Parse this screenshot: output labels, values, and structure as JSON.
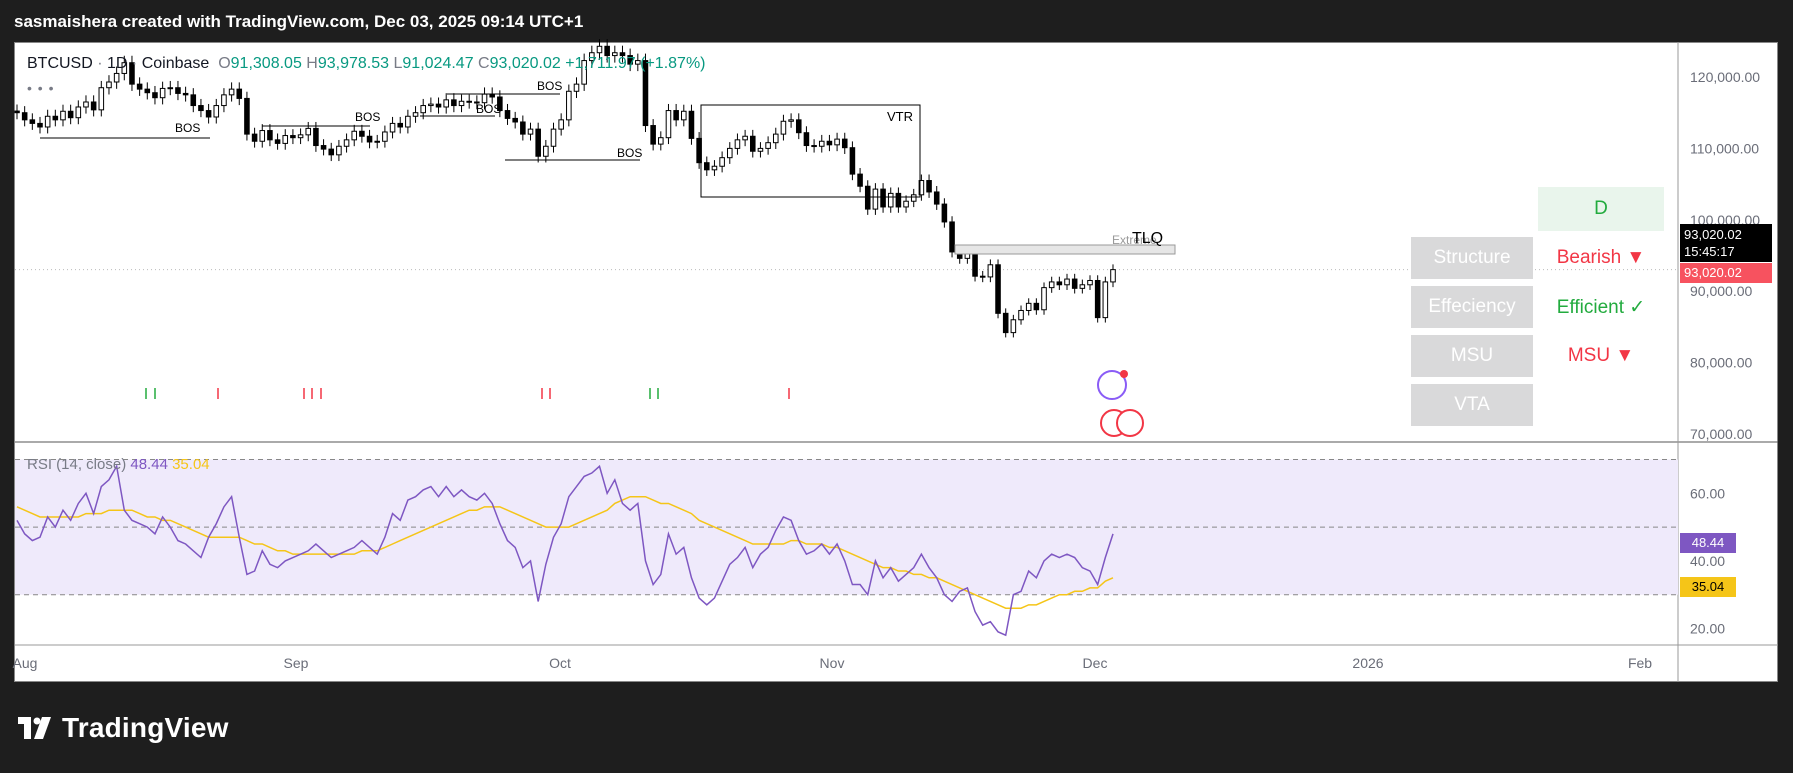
{
  "header": {
    "attribution": "sasmaishera created with TradingView.com, Dec 03, 2025 09:14 UTC+1"
  },
  "legend": {
    "symbol": "BTCUSD",
    "sep": "·",
    "interval": "1D",
    "exchange": "Coinbase",
    "o_label": "O",
    "o_value": "91,308.05",
    "h_label": "H",
    "h_value": "93,978.53",
    "l_label": "L",
    "l_value": "91,024.47",
    "c_label": "C",
    "c_value": "93,020.02",
    "change": "+1,711.97 (+1.87%)",
    "more": "• • •"
  },
  "rsi": {
    "name": "RSI (14, close)",
    "value": "48.44",
    "ma_value": "35.04"
  },
  "colors": {
    "up": "#ffffff",
    "down": "#000000",
    "rsi_line": "#7e57c2",
    "rsi_ma": "#f5c518",
    "bearish": "#f23645",
    "efficient": "#22ab3e",
    "last_price": "#f7525f",
    "rsi_badge": "#7e57c2",
    "ma_badge": "#f5c518"
  },
  "panel": {
    "timeframe": "D",
    "rows": [
      {
        "label": "Structure",
        "value": "Bearish ▼",
        "color": "#f23645"
      },
      {
        "label": "Effeciency",
        "value": "Efficient ✓",
        "color": "#22ab3e"
      },
      {
        "label": "MSU",
        "value": "MSU ▼",
        "color": "#f23645"
      },
      {
        "label": "VTA",
        "value": "",
        "color": "#000000"
      }
    ]
  },
  "annotations": {
    "bos": "BOS",
    "vtr": "VTR",
    "tlq": "TLQ",
    "extreme": "Extreme"
  },
  "price_axis": {
    "ticks": [
      "120,000.00",
      "110,000.00",
      "100,000.00",
      "90,000.00",
      "80,000.00",
      "70,000.00"
    ],
    "last_price": "93,020.02",
    "countdown": "15:45:17",
    "last_price_red": "93,020.02"
  },
  "rsi_axis": {
    "ticks": [
      "60.00",
      "40.00",
      "20.00"
    ]
  },
  "time_axis": {
    "ticks": [
      "Aug",
      "Sep",
      "Oct",
      "Nov",
      "Dec",
      "2026",
      "Feb"
    ]
  },
  "logo": {
    "text": "TradingView"
  },
  "chart_data": {
    "type": "candlestick",
    "symbol": "BTCUSD",
    "interval": "1D",
    "ylim": [
      70000,
      125000
    ],
    "x_ticks": [
      "Aug",
      "Sep",
      "Oct",
      "Nov",
      "Dec",
      "2026",
      "Feb"
    ],
    "y_ticks": [
      120000,
      110000,
      100000,
      90000,
      80000,
      70000
    ],
    "close": [
      115000,
      114000,
      113500,
      113000,
      114500,
      114000,
      115200,
      114300,
      115800,
      116500,
      115400,
      118500,
      119300,
      120500,
      122000,
      119000,
      118300,
      117800,
      117100,
      118400,
      118500,
      117700,
      117500,
      116000,
      115300,
      114400,
      116000,
      117500,
      118300,
      117000,
      112000,
      111000,
      112500,
      111200,
      110700,
      111800,
      111500,
      111900,
      112800,
      110400,
      109900,
      109100,
      110300,
      111200,
      112400,
      111700,
      110900,
      111000,
      112300,
      113500,
      113000,
      114500,
      115000,
      116000,
      116200,
      115800,
      116800,
      116000,
      116600,
      116500,
      116400,
      117600,
      117200,
      115300,
      114200,
      113700,
      112000,
      112700,
      108900,
      110300,
      112700,
      114000,
      118000,
      119000,
      122300,
      123400,
      124300,
      123000,
      123400,
      123000,
      121800,
      122300,
      113200,
      110600,
      111500,
      115300,
      114000,
      115200,
      111400,
      108000,
      107000,
      107500,
      108700,
      110000,
      111200,
      111700,
      109600,
      110000,
      110800,
      112000,
      113800,
      114000,
      112200,
      110400,
      110300,
      111000,
      110500,
      111300,
      110100,
      106400,
      104700,
      101500,
      104300,
      101800,
      103700,
      101800,
      102600,
      103500,
      105500,
      103900,
      102200,
      99700,
      95500,
      94600,
      95500,
      92100,
      92000,
      93700,
      86900,
      84200,
      86000,
      87300,
      88300,
      87400,
      90500,
      91300,
      90900,
      91700,
      90400,
      90900,
      91500,
      86300,
      91300,
      93020
    ],
    "rsi": [
      52,
      48,
      46,
      47,
      53,
      50,
      55,
      52,
      57,
      60,
      54,
      62,
      64,
      68,
      55,
      52,
      51,
      50,
      48,
      53,
      50,
      46,
      45,
      43,
      41,
      47,
      51,
      56,
      59,
      47,
      36,
      37,
      43,
      39,
      38,
      40,
      41,
      42,
      43,
      45,
      43,
      41,
      42,
      43,
      44,
      46,
      44,
      42,
      47,
      54,
      52,
      58,
      59,
      61,
      62,
      59,
      62,
      59,
      61,
      59,
      58,
      60,
      57,
      51,
      46,
      44,
      38,
      40,
      28,
      39,
      47,
      51,
      59,
      62,
      65,
      66,
      68,
      60,
      64,
      57,
      55,
      57,
      40,
      33,
      36,
      48,
      42,
      44,
      35,
      29,
      27,
      29,
      34,
      39,
      41,
      44,
      38,
      42,
      44,
      49,
      53,
      52,
      46,
      42,
      43,
      45,
      42,
      45,
      40,
      33,
      33,
      30,
      40,
      35,
      38,
      34,
      36,
      38,
      42,
      38,
      35,
      30,
      28,
      31,
      32,
      25,
      21,
      22,
      19,
      18,
      30,
      31,
      37,
      35,
      40,
      42,
      41,
      42,
      41,
      38,
      37,
      33,
      41,
      48
    ],
    "rsi_ma": [
      56,
      55,
      54,
      53,
      53,
      53,
      53,
      53,
      53,
      54,
      54,
      54,
      55,
      55,
      55,
      55,
      54,
      53,
      53,
      52,
      52,
      51,
      50,
      49,
      48,
      47,
      47,
      47,
      47,
      47,
      46,
      45,
      45,
      44,
      43,
      43,
      42,
      42,
      42,
      42,
      42,
      42,
      42,
      42,
      42,
      43,
      43,
      43,
      44,
      45,
      46,
      47,
      48,
      49,
      50,
      51,
      52,
      53,
      54,
      55,
      55,
      56,
      56,
      56,
      55,
      54,
      53,
      52,
      51,
      50,
      50,
      50,
      50,
      51,
      52,
      53,
      54,
      55,
      57,
      58,
      59,
      59,
      59,
      58,
      57,
      57,
      56,
      55,
      54,
      52,
      51,
      50,
      49,
      48,
      47,
      46,
      45,
      45,
      45,
      45,
      45,
      46,
      46,
      45,
      45,
      45,
      44,
      44,
      43,
      42,
      41,
      40,
      39,
      38,
      38,
      37,
      37,
      36,
      36,
      35,
      35,
      34,
      33,
      32,
      31,
      30,
      29,
      28,
      27,
      26,
      26,
      26,
      27,
      27,
      28,
      29,
      30,
      30,
      31,
      31,
      32,
      32,
      34,
      35
    ],
    "rsi_levels": [
      70,
      50,
      30
    ],
    "rsi_ylim": [
      16,
      74
    ]
  }
}
